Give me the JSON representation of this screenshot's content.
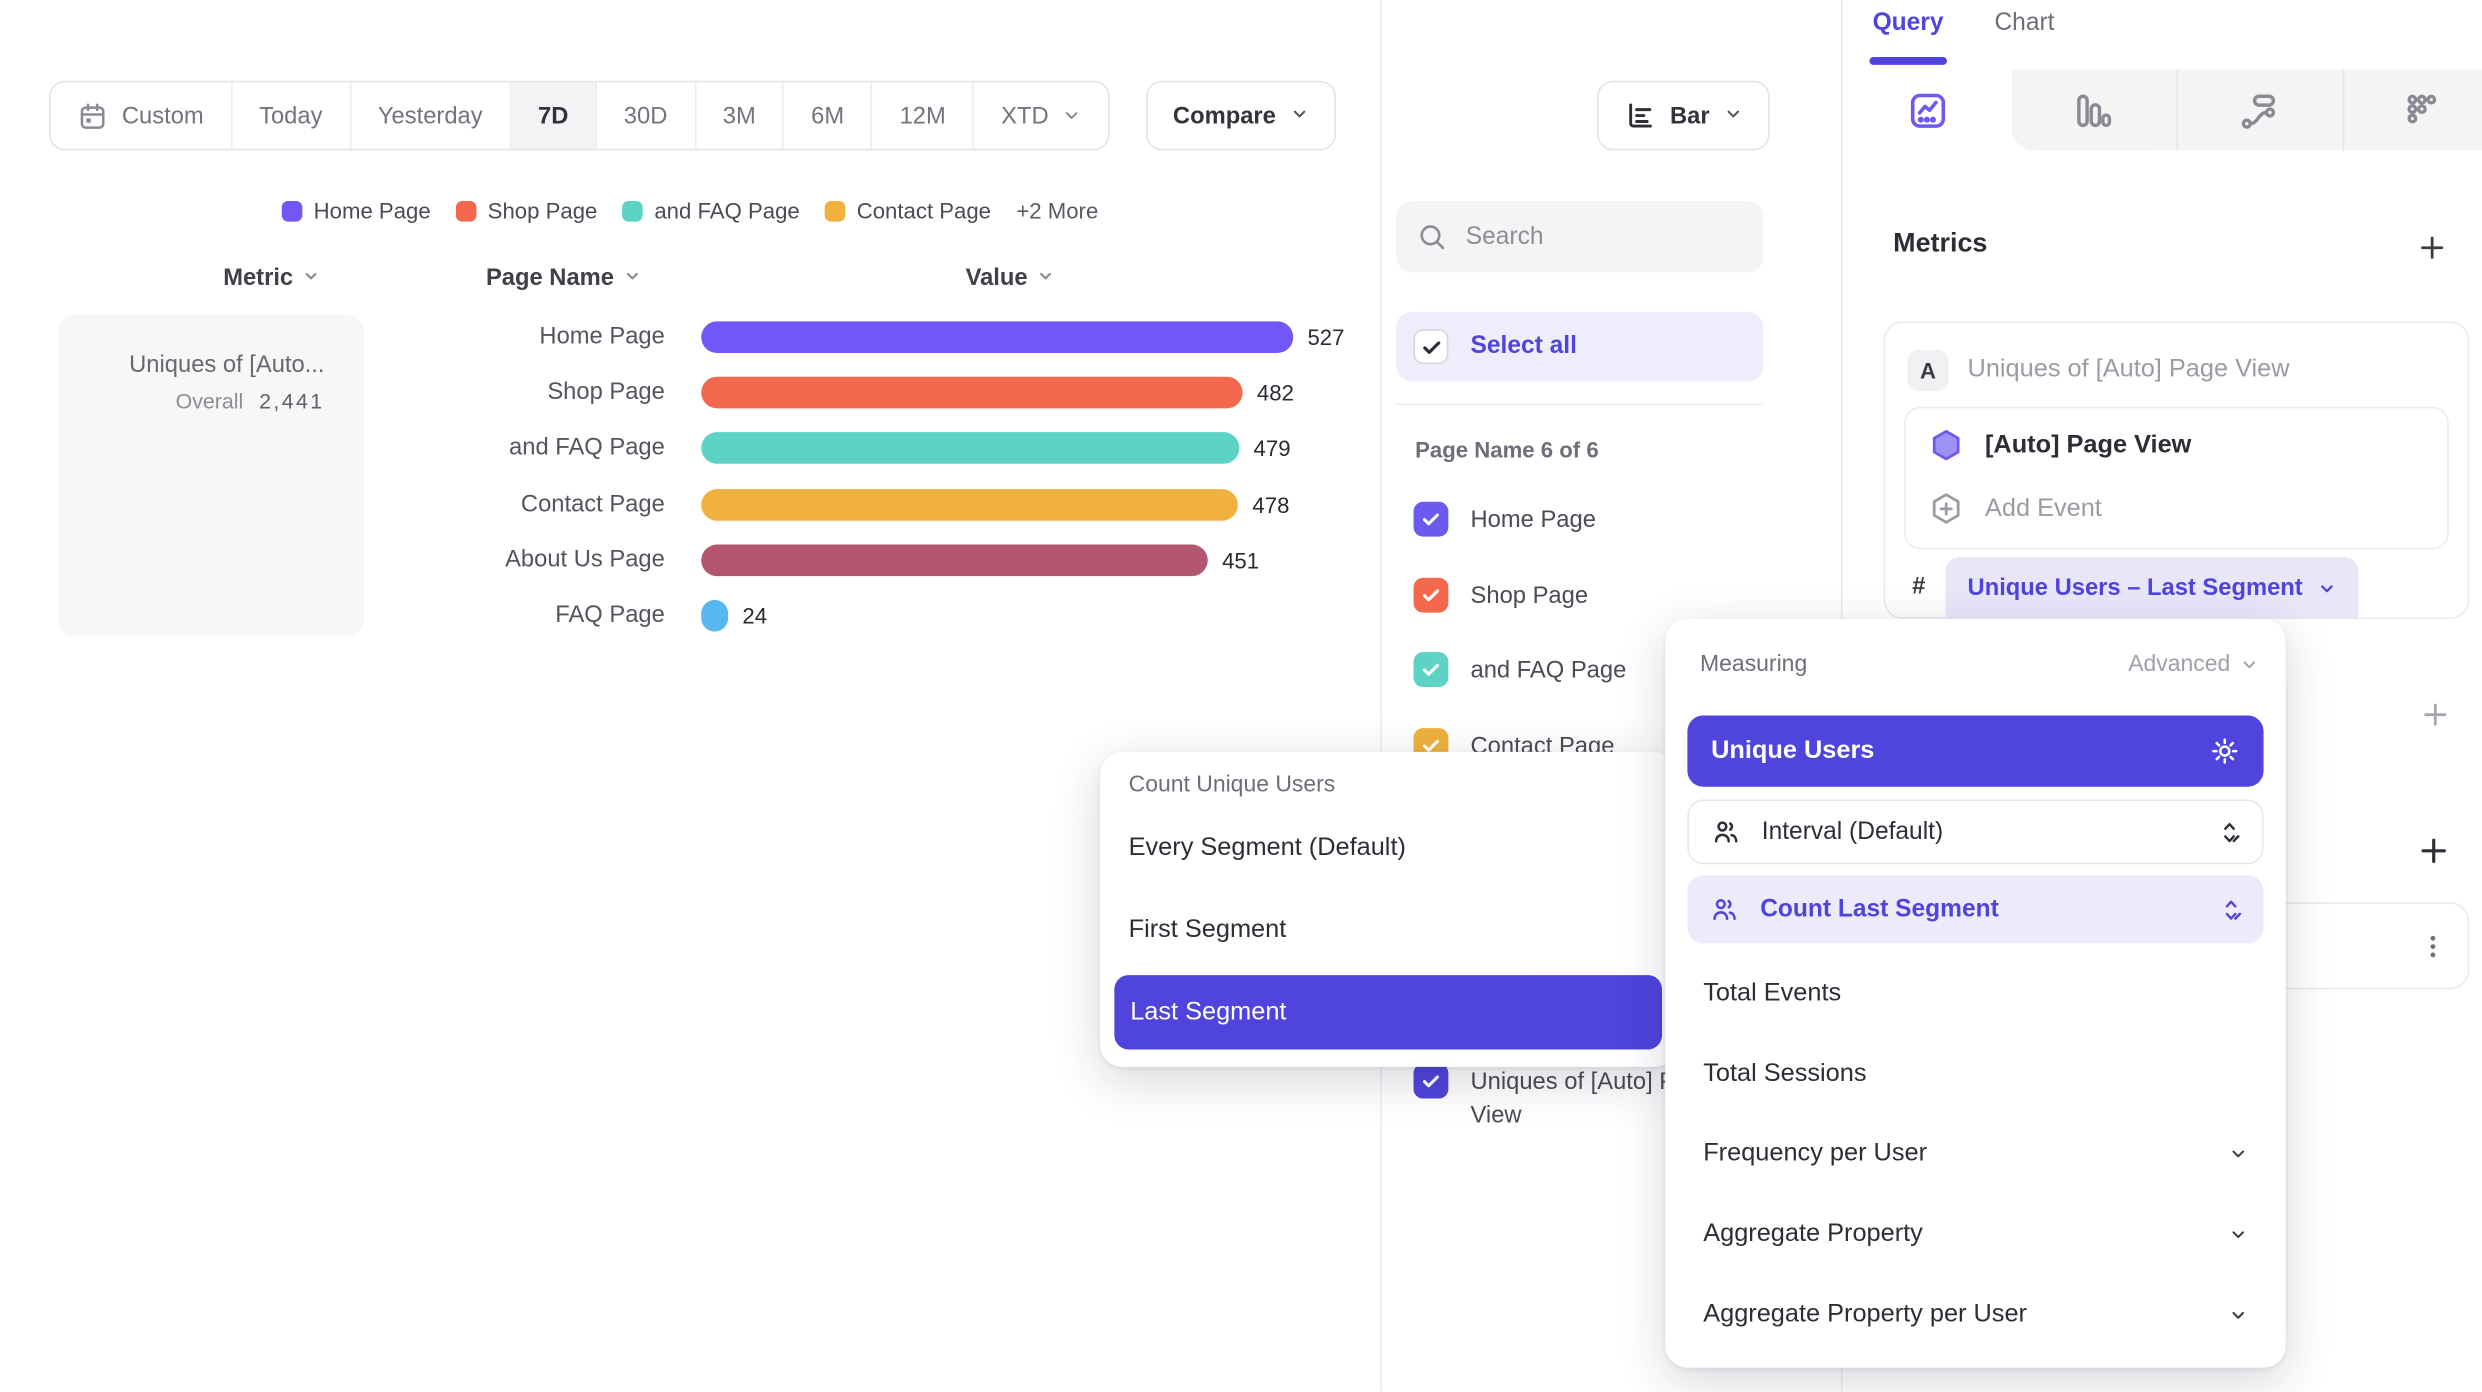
{
  "colors": {
    "accent": "#4F44DB",
    "accent_light_bg": "#ECEAFB",
    "bar_purple": "#7356F6",
    "coral": "#F4694D",
    "teal": "#5DD3C6",
    "amber": "#F0B13E",
    "maroon": "#B25671",
    "sky": "#58B7F0"
  },
  "toolbar": {
    "date_ranges": [
      "Custom",
      "Today",
      "Yesterday",
      "7D",
      "30D",
      "3M",
      "6M",
      "12M",
      "XTD"
    ],
    "active_range": "7D",
    "compare_label": "Compare",
    "chart_type_label": "Bar"
  },
  "legend": {
    "items": [
      {
        "label": "Home Page",
        "color": "#7356F6"
      },
      {
        "label": "Shop Page",
        "color": "#F4694D"
      },
      {
        "label": "and FAQ Page",
        "color": "#5DD3C6"
      },
      {
        "label": "Contact Page",
        "color": "#F0B13E"
      }
    ],
    "more_label": "+2 More"
  },
  "table_headers": {
    "metric": "Metric",
    "page_name": "Page Name",
    "value": "Value"
  },
  "metric_summary": {
    "name": "Uniques of [Auto...",
    "overall_label": "Overall",
    "overall_value": "2,441"
  },
  "chart_data": {
    "type": "bar",
    "orientation": "horizontal",
    "categories": [
      "Home Page",
      "Shop Page",
      "and FAQ Page",
      "Contact Page",
      "About Us Page",
      "FAQ Page"
    ],
    "values": [
      527,
      482,
      479,
      478,
      451,
      24
    ],
    "colors": [
      "#7356F6",
      "#F4694D",
      "#5DD3C6",
      "#F0B13E",
      "#B25671",
      "#58B7F0"
    ],
    "xlim": [
      0,
      527
    ],
    "value_labels_shown": true,
    "legend_position": "top"
  },
  "filter_panel": {
    "search_placeholder": "Search",
    "select_all_label": "Select all",
    "group_label": "Page Name 6 of 6",
    "items": [
      {
        "label": "Home Page",
        "color": "#6C5AF0",
        "checked": true
      },
      {
        "label": "Shop Page",
        "color": "#F4694D",
        "checked": true
      },
      {
        "label": "and FAQ Page",
        "color": "#5DD3C6",
        "checked": true
      },
      {
        "label": "Contact Page",
        "color": "#F0B13E",
        "checked": true
      },
      {
        "label": "About Us Page",
        "color": "#B25671",
        "checked": true
      },
      {
        "label": "FAQ Page",
        "color": "#58B7F0",
        "checked": true
      }
    ],
    "metric_item": {
      "label": "Uniques of [Auto] Page View",
      "color": "#4F44DB",
      "checked": true
    }
  },
  "segment_menu": {
    "header": "Count Unique Users",
    "items": [
      "Every Segment (Default)",
      "First Segment",
      "Last Segment"
    ],
    "selected_item": "Last Segment"
  },
  "query_panel": {
    "tabs": [
      "Query",
      "Chart"
    ],
    "active_tab": "Query",
    "chart_type_tabs": [
      "insights",
      "funnels",
      "flows",
      "retention"
    ],
    "active_chart_type_tab": "insights",
    "metrics_header": "Metrics",
    "metric_card": {
      "badge": "A",
      "title": "Uniques of [Auto] Page View",
      "event_name": "[Auto] Page View",
      "add_event_label": "Add Event",
      "hash": "#",
      "measurement_pill": "Unique Users – Last Segment"
    }
  },
  "measuring_menu": {
    "header": "Measuring",
    "advanced_label": "Advanced",
    "selected": "Unique Users",
    "stepper_rows": [
      {
        "label": "Interval (Default)",
        "active": false
      },
      {
        "label": "Count Last Segment",
        "active": true
      }
    ],
    "plain_items": [
      "Total Events",
      "Total Sessions"
    ],
    "expandable_items": [
      "Frequency per User",
      "Aggregate Property",
      "Aggregate Property per User"
    ]
  }
}
